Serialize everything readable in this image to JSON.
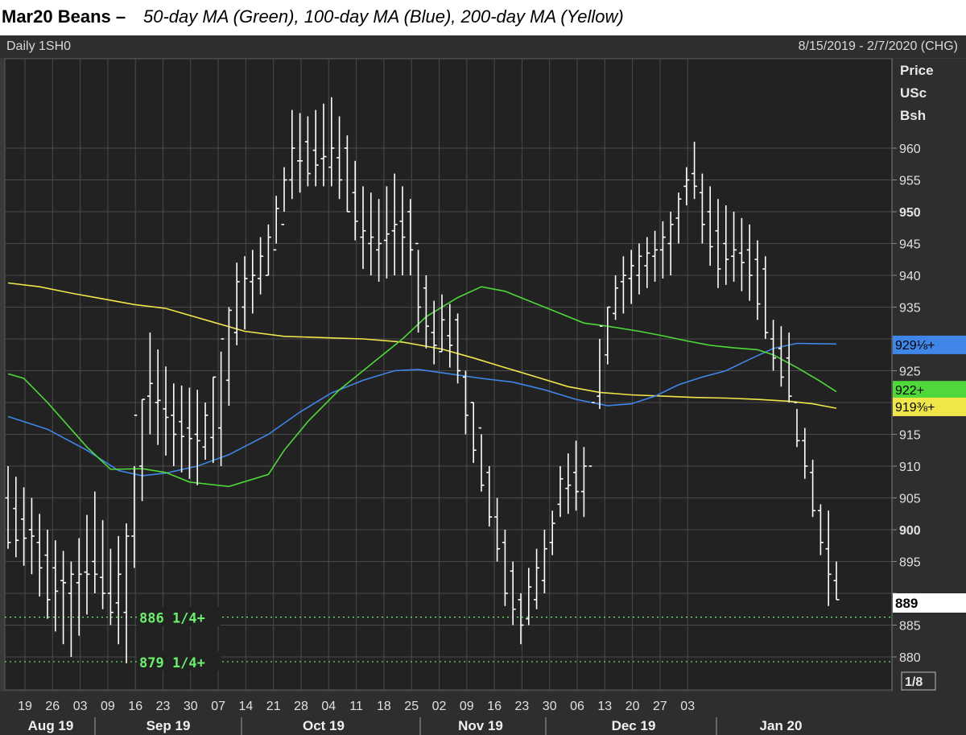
{
  "header": {
    "title_bold": "Mar20 Beans –",
    "title_italic": "50-day MA (Green), 100-day MA (Blue), 200-day MA (Yellow)",
    "left_label": "Daily 1SH0",
    "right_label": "8/15/2019 - 2/7/2020 (CHG)"
  },
  "colors": {
    "background": "#222222",
    "panel": "#2e2e2e",
    "grid": "#4a4a4a",
    "bars": "#ffffff",
    "ma50": "#4ed83a",
    "ma100": "#3f86e8",
    "ma200": "#f0e64a",
    "support": "#6cf06c"
  },
  "chart_data": {
    "type": "ohlc",
    "price_axis_label": [
      "Price",
      "USc",
      "Bsh"
    ],
    "ylim": [
      876,
      970
    ],
    "y_ticks": [
      880,
      885,
      890,
      895,
      900,
      905,
      910,
      915,
      920,
      925,
      930,
      935,
      940,
      945,
      950,
      955,
      960
    ],
    "y_tick_labels": [
      "880",
      "885",
      "",
      "895",
      "900",
      "905",
      "910",
      "915",
      "",
      "925",
      "",
      "935",
      "940",
      "945",
      "950",
      "955",
      "960"
    ],
    "scale_label": "1/8",
    "x_day_labels": [
      "19",
      "26",
      "03",
      "09",
      "16",
      "23",
      "30",
      "07",
      "14",
      "21",
      "28",
      "04",
      "11",
      "18",
      "25",
      "02",
      "09",
      "16",
      "23",
      "30",
      "06",
      "13",
      "20",
      "27",
      "03"
    ],
    "x_month_labels": [
      "Aug 19",
      "Sep 19",
      "Oct 19",
      "Nov 19",
      "Dec 19",
      "Jan 20"
    ],
    "last_price_label": "889",
    "price_tags": [
      {
        "name": "100-day MA",
        "label": "929⅛+",
        "value": 929.125,
        "color": "#3f86e8"
      },
      {
        "name": "50-day MA",
        "label": "922+",
        "value": 922.0,
        "color": "#4ed83a"
      },
      {
        "name": "200-day MA",
        "label": "919⅜+",
        "value": 919.375,
        "color": "#f0e64a"
      }
    ],
    "support_levels": [
      {
        "label": "886 1/4+",
        "value": 886.25
      },
      {
        "label": "879 1/4+",
        "value": 879.25
      }
    ],
    "ohlc_waypoints": [
      [
        0,
        905,
        910,
        897,
        898
      ],
      [
        3,
        900,
        905,
        893,
        899
      ],
      [
        5,
        896,
        900,
        886,
        889
      ],
      [
        8,
        890,
        895,
        880,
        893
      ],
      [
        11,
        895,
        906,
        890,
        893
      ],
      [
        13,
        890,
        897,
        885,
        887
      ],
      [
        15,
        887,
        901,
        879,
        899
      ],
      [
        16,
        899,
        910,
        894,
        918
      ],
      [
        18,
        921,
        931,
        915,
        923
      ],
      [
        21,
        918,
        923,
        910,
        915
      ],
      [
        24,
        915,
        922,
        907,
        914
      ],
      [
        25,
        913,
        920,
        911,
        918
      ],
      [
        27,
        916,
        928,
        910,
        930
      ],
      [
        29,
        931,
        942,
        929,
        939
      ],
      [
        31,
        939,
        944,
        934,
        940
      ],
      [
        33,
        940,
        948,
        940,
        946
      ],
      [
        35,
        948,
        957,
        950,
        955
      ],
      [
        36,
        955,
        966,
        952,
        960
      ],
      [
        38,
        961,
        965,
        954,
        956
      ],
      [
        41,
        957,
        968,
        954,
        960
      ],
      [
        43,
        960,
        962,
        950,
        950
      ],
      [
        45,
        946,
        954,
        941,
        947
      ],
      [
        47,
        944,
        952,
        939,
        945
      ],
      [
        49,
        947,
        956,
        940,
        948
      ],
      [
        51,
        950,
        952,
        940,
        944
      ],
      [
        52,
        945,
        944,
        931,
        935
      ],
      [
        54,
        931,
        936,
        926,
        929
      ],
      [
        55,
        928,
        937,
        928,
        933
      ],
      [
        57,
        933,
        934,
        923,
        925
      ],
      [
        58,
        924,
        925,
        915,
        918
      ],
      [
        60,
        916,
        915,
        906,
        907
      ],
      [
        62,
        902,
        905,
        895,
        897
      ],
      [
        63,
        898,
        900,
        888,
        890
      ],
      [
        65,
        889,
        890,
        882,
        885
      ],
      [
        66,
        886,
        894,
        885,
        891
      ],
      [
        68,
        892,
        900,
        890,
        897
      ],
      [
        69,
        898,
        903,
        896,
        901
      ],
      [
        70,
        904,
        910,
        902,
        908
      ],
      [
        72,
        909,
        914,
        903,
        906
      ],
      [
        73,
        906,
        913,
        902,
        910
      ],
      [
        74,
        910,
        917,
        917,
        920
      ],
      [
        75,
        921,
        930,
        919,
        932
      ],
      [
        77,
        934,
        940,
        933,
        938
      ],
      [
        78,
        939,
        943,
        934,
        940
      ],
      [
        80,
        940,
        945,
        937,
        943
      ],
      [
        82,
        943,
        947,
        939,
        944
      ],
      [
        84,
        945,
        950,
        940,
        948
      ],
      [
        85,
        949,
        953,
        945,
        952
      ],
      [
        86,
        954,
        957,
        951,
        955
      ],
      [
        87,
        956,
        961,
        952,
        954
      ],
      [
        88,
        953,
        956,
        945,
        948
      ],
      [
        90,
        947,
        952,
        938,
        941
      ],
      [
        92,
        943,
        950,
        939,
        944
      ],
      [
        94,
        944,
        948,
        936,
        940
      ],
      [
        96,
        941,
        943,
        930,
        931
      ],
      [
        97,
        930,
        933,
        925,
        927
      ],
      [
        99,
        927,
        931,
        920,
        921
      ],
      [
        100,
        920,
        919,
        913,
        914
      ],
      [
        101,
        914,
        916,
        908,
        910
      ],
      [
        102,
        909,
        911,
        902,
        903
      ],
      [
        103,
        903,
        904,
        896,
        898
      ],
      [
        104,
        897,
        903,
        888,
        893
      ],
      [
        105,
        892,
        895,
        889,
        889
      ]
    ],
    "ma50": [
      [
        0,
        924.5
      ],
      [
        2,
        923.8
      ],
      [
        5,
        920
      ],
      [
        10,
        913
      ],
      [
        13,
        909.5
      ],
      [
        17,
        909.6
      ],
      [
        20,
        909
      ],
      [
        23,
        907.5
      ],
      [
        28,
        906.8
      ],
      [
        33,
        908.7
      ],
      [
        35,
        912.5
      ],
      [
        38,
        917
      ],
      [
        42,
        922
      ],
      [
        46,
        926
      ],
      [
        50,
        930
      ],
      [
        53,
        933.5
      ],
      [
        57,
        936.5
      ],
      [
        60,
        938.2
      ],
      [
        63,
        937.5
      ],
      [
        66,
        936
      ],
      [
        70,
        934
      ],
      [
        73,
        932.5
      ],
      [
        76,
        932
      ],
      [
        80,
        931.2
      ],
      [
        83,
        930.5
      ],
      [
        86,
        929.7
      ],
      [
        89,
        929
      ],
      [
        92,
        928.6
      ],
      [
        95,
        928.3
      ],
      [
        97,
        927.5
      ],
      [
        100,
        925.5
      ],
      [
        103,
        923.3
      ],
      [
        105,
        921.7
      ]
    ],
    "ma100": [
      [
        0,
        917.8
      ],
      [
        5,
        915.8
      ],
      [
        10,
        912.5
      ],
      [
        14,
        909.3
      ],
      [
        17,
        908.5
      ],
      [
        20,
        908.9
      ],
      [
        24,
        910
      ],
      [
        28,
        911.8
      ],
      [
        33,
        915
      ],
      [
        37,
        918.5
      ],
      [
        41,
        921.5
      ],
      [
        45,
        923.5
      ],
      [
        49,
        925
      ],
      [
        52,
        925.2
      ],
      [
        56,
        924.5
      ],
      [
        60,
        923.8
      ],
      [
        64,
        923.2
      ],
      [
        68,
        922
      ],
      [
        72,
        920.5
      ],
      [
        76,
        919.5
      ],
      [
        79,
        919.8
      ],
      [
        82,
        921
      ],
      [
        85,
        922.8
      ],
      [
        88,
        924
      ],
      [
        91,
        925
      ],
      [
        94,
        926.8
      ],
      [
        97,
        928.5
      ],
      [
        100,
        929.3
      ],
      [
        105,
        929.2
      ]
    ],
    "ma200": [
      [
        0,
        938.8
      ],
      [
        4,
        938.2
      ],
      [
        8,
        937.2
      ],
      [
        12,
        936.3
      ],
      [
        16,
        935.4
      ],
      [
        20,
        934.8
      ],
      [
        25,
        933
      ],
      [
        30,
        931.2
      ],
      [
        35,
        930.4
      ],
      [
        40,
        930.2
      ],
      [
        45,
        930
      ],
      [
        50,
        929.5
      ],
      [
        55,
        928.4
      ],
      [
        59,
        927
      ],
      [
        63,
        925.5
      ],
      [
        67,
        924
      ],
      [
        71,
        922.5
      ],
      [
        75,
        921.6
      ],
      [
        79,
        921.2
      ],
      [
        83,
        921
      ],
      [
        87,
        920.8
      ],
      [
        91,
        920.7
      ],
      [
        95,
        920.5
      ],
      [
        99,
        920.2
      ],
      [
        102,
        919.8
      ],
      [
        105,
        919.1
      ]
    ]
  }
}
